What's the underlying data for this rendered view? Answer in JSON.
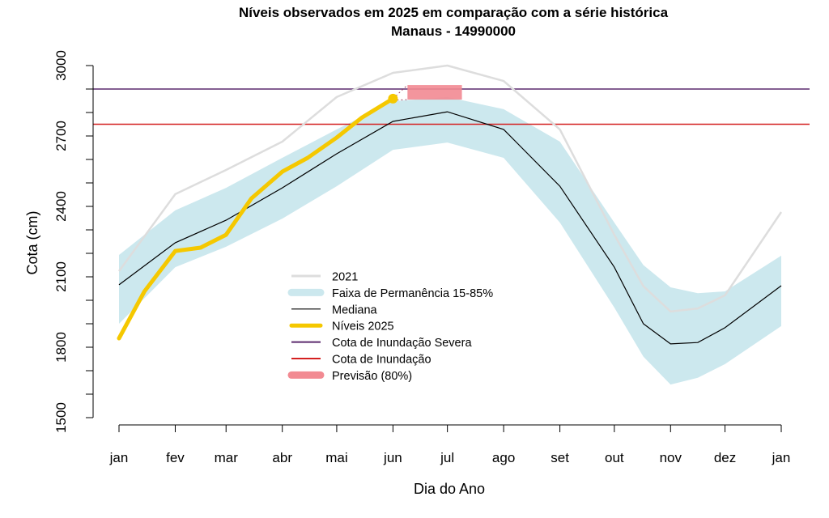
{
  "chart_data": {
    "type": "line",
    "title": "Níveis observados em 2025 em comparação com a série histórica",
    "subtitle": "Manaus - 14990000",
    "xlabel": "Dia do Ano",
    "ylabel": "Cota (cm)",
    "ylim": [
      1500,
      3000
    ],
    "yticks": [
      1500,
      1800,
      2100,
      2400,
      2700,
      3000
    ],
    "xlim": [
      1,
      366
    ],
    "xticks": [
      {
        "day": 1,
        "label": "jan"
      },
      {
        "day": 32,
        "label": "fev"
      },
      {
        "day": 60,
        "label": "mar"
      },
      {
        "day": 91,
        "label": "abr"
      },
      {
        "day": 121,
        "label": "mai"
      },
      {
        "day": 152,
        "label": "jun"
      },
      {
        "day": 182,
        "label": "jul"
      },
      {
        "day": 213,
        "label": "ago"
      },
      {
        "day": 244,
        "label": "set"
      },
      {
        "day": 274,
        "label": "out"
      },
      {
        "day": 305,
        "label": "nov"
      },
      {
        "day": 335,
        "label": "dez"
      },
      {
        "day": 366,
        "label": "jan"
      }
    ],
    "days": [
      1,
      32,
      60,
      91,
      121,
      152,
      182,
      213,
      244,
      274,
      290,
      305,
      320,
      335,
      366
    ],
    "series": [
      {
        "name": "2021",
        "color": "#dddddd",
        "values": [
          2124,
          2452,
          2555,
          2676,
          2866,
          2969,
          3000,
          2934,
          2728,
          2279,
          2060,
          1952,
          1965,
          2021,
          2376
        ]
      },
      {
        "name": "Mediana",
        "color": "#000000",
        "values": [
          2066,
          2245,
          2341,
          2479,
          2624,
          2762,
          2803,
          2728,
          2486,
          2141,
          1900,
          1814,
          1820,
          1883,
          2062
        ]
      }
    ],
    "band": {
      "name": "Faixa de Permanência 15-85%",
      "color": "#cce8ee",
      "upper": [
        2193,
        2383,
        2479,
        2607,
        2728,
        2848,
        2866,
        2814,
        2676,
        2331,
        2150,
        2055,
        2030,
        2038,
        2190
      ],
      "lower": [
        1900,
        2141,
        2228,
        2348,
        2486,
        2641,
        2672,
        2607,
        2331,
        1969,
        1760,
        1641,
        1670,
        1728,
        1890
      ]
    },
    "levels_2025": {
      "name": "Níveis 2025",
      "color": "#f5c800",
      "days": [
        1,
        15,
        32,
        46,
        60,
        74,
        91,
        105,
        121,
        135,
        152
      ],
      "values": [
        1838,
        2038,
        2210,
        2224,
        2279,
        2434,
        2548,
        2607,
        2693,
        2779,
        2859
      ]
    },
    "thresholds": [
      {
        "name": "Cota de Inundação Severa",
        "value": 2900,
        "color": "#5b2a6e"
      },
      {
        "name": "Cota de Inundação",
        "value": 2750,
        "color": "#d42020"
      }
    ],
    "forecast": {
      "name": "Previsão (80%)",
      "color": "#f28a92",
      "day_start": 160,
      "day_end": 190,
      "low": 2855,
      "high": 2917
    },
    "legend": {
      "position": "center",
      "entries": [
        "2021",
        "Faixa de Permanência 15-85%",
        "Mediana",
        "Níveis 2025",
        "Cota de Inundação Severa",
        "Cota de Inundação",
        "Previsão (80%)"
      ]
    }
  }
}
